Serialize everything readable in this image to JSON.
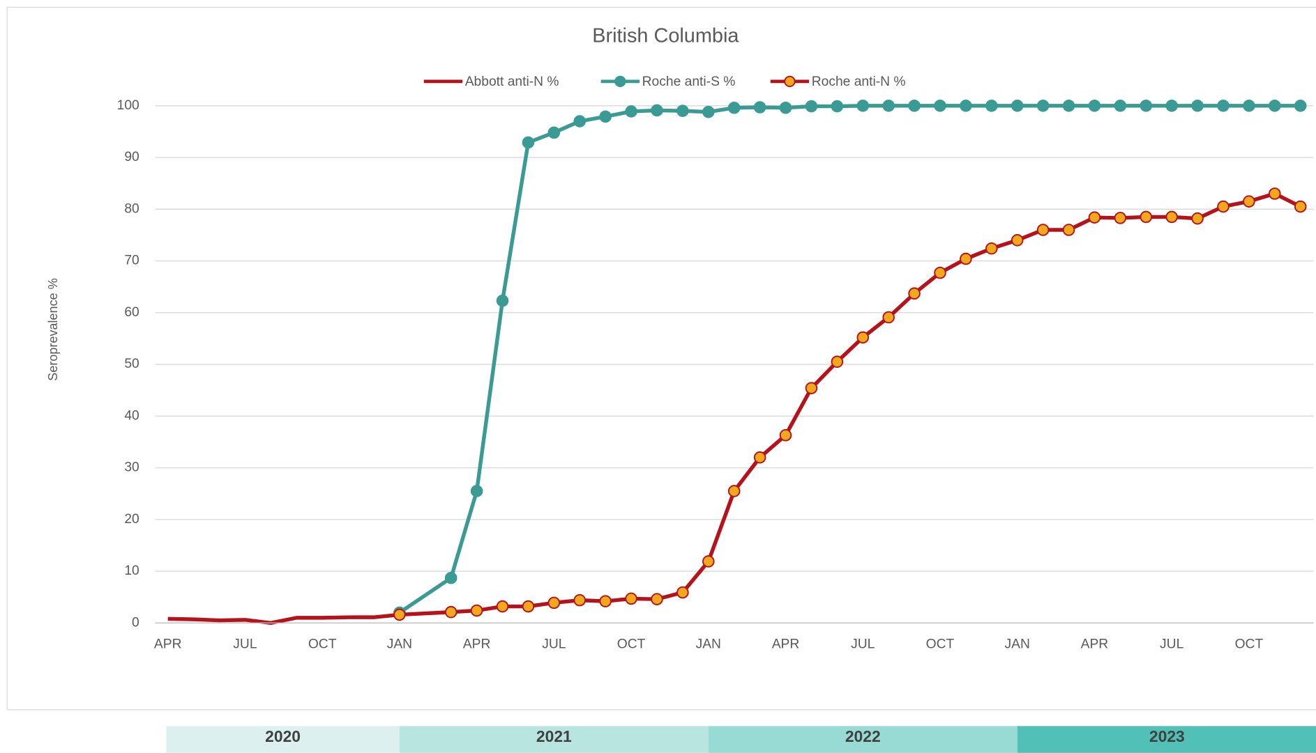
{
  "chart_data": {
    "type": "line",
    "title": "British Columbia",
    "y_label": "Seroprevalence %",
    "xlim": [
      "2020-04",
      "2023-12"
    ],
    "xticks": [
      {
        "value": "2020-04",
        "label": "APR"
      },
      {
        "value": "2020-07",
        "label": "JUL"
      },
      {
        "value": "2020-10",
        "label": "OCT"
      },
      {
        "value": "2021-01",
        "label": "JAN"
      },
      {
        "value": "2021-04",
        "label": "APR"
      },
      {
        "value": "2021-07",
        "label": "JUL"
      },
      {
        "value": "2021-10",
        "label": "OCT"
      },
      {
        "value": "2022-01",
        "label": "JAN"
      },
      {
        "value": "2022-04",
        "label": "APR"
      },
      {
        "value": "2022-07",
        "label": "JUL"
      },
      {
        "value": "2022-10",
        "label": "OCT"
      },
      {
        "value": "2023-01",
        "label": "JAN"
      },
      {
        "value": "2023-04",
        "label": "APR"
      },
      {
        "value": "2023-07",
        "label": "JUL"
      },
      {
        "value": "2023-10",
        "label": "OCT"
      }
    ],
    "ylim": [
      0,
      100
    ],
    "yticks": [
      0,
      10,
      20,
      30,
      40,
      50,
      60,
      70,
      80,
      90,
      100
    ],
    "grid": true,
    "year_bands": [
      {
        "label": "2020",
        "color": "#dcf1ef"
      },
      {
        "label": "2021",
        "color": "#b9e5e1"
      },
      {
        "label": "2022",
        "color": "#97dbd4"
      },
      {
        "label": "2023",
        "color": "#51c0b6"
      }
    ],
    "series": [
      {
        "name": "Abbott anti-N %",
        "color": "#b5121b",
        "marker": "none",
        "x": [
          "2020-04",
          "2020-05",
          "2020-06",
          "2020-07",
          "2020-08",
          "2020-09",
          "2020-10",
          "2020-11",
          "2020-12",
          "2021-01"
        ],
        "values": [
          0.8,
          0.7,
          0.5,
          0.6,
          0.0,
          1.0,
          1.0,
          1.1,
          1.1,
          1.6
        ]
      },
      {
        "name": "Roche anti-S %",
        "color": "#3a9a94",
        "marker": "circle",
        "marker_fill": "#3a9a94",
        "x": [
          "2021-01",
          "2021-03",
          "2021-04",
          "2021-05",
          "2021-06",
          "2021-07",
          "2021-08",
          "2021-09",
          "2021-10",
          "2021-11",
          "2021-12",
          "2022-01",
          "2022-02",
          "2022-03",
          "2022-04",
          "2022-05",
          "2022-06",
          "2022-07",
          "2022-08",
          "2022-09",
          "2022-10",
          "2022-11",
          "2022-12",
          "2023-01",
          "2023-02",
          "2023-03",
          "2023-04",
          "2023-05",
          "2023-06",
          "2023-07",
          "2023-08",
          "2023-09",
          "2023-10",
          "2023-11",
          "2023-12"
        ],
        "values": [
          2.0,
          8.7,
          25.5,
          62.3,
          92.9,
          94.8,
          97.0,
          97.9,
          98.9,
          99.1,
          99.0,
          98.8,
          99.6,
          99.7,
          99.6,
          99.9,
          99.9,
          100,
          100,
          100,
          100,
          100,
          100,
          100,
          100,
          100,
          100,
          100,
          100,
          100,
          100,
          100,
          100,
          100,
          100
        ]
      },
      {
        "name": "Roche anti-N %",
        "color": "#b5121b",
        "marker": "circle",
        "marker_fill": "#f2a81d",
        "x": [
          "2021-01",
          "2021-03",
          "2021-04",
          "2021-05",
          "2021-06",
          "2021-07",
          "2021-08",
          "2021-09",
          "2021-10",
          "2021-11",
          "2021-12",
          "2022-01",
          "2022-02",
          "2022-03",
          "2022-04",
          "2022-05",
          "2022-06",
          "2022-07",
          "2022-08",
          "2022-09",
          "2022-10",
          "2022-11",
          "2022-12",
          "2023-01",
          "2023-02",
          "2023-03",
          "2023-04",
          "2023-05",
          "2023-06",
          "2023-07",
          "2023-08",
          "2023-09",
          "2023-10",
          "2023-11",
          "2023-12"
        ],
        "values": [
          1.6,
          2.1,
          2.4,
          3.2,
          3.2,
          3.9,
          4.4,
          4.2,
          4.7,
          4.6,
          5.9,
          11.9,
          25.5,
          32.0,
          36.3,
          45.4,
          50.5,
          55.2,
          59.1,
          63.7,
          67.7,
          70.4,
          72.4,
          74.0,
          76.0,
          76.0,
          78.4,
          78.3,
          78.5,
          78.5,
          78.2,
          80.5,
          81.5,
          83.0,
          80.5
        ]
      }
    ]
  }
}
